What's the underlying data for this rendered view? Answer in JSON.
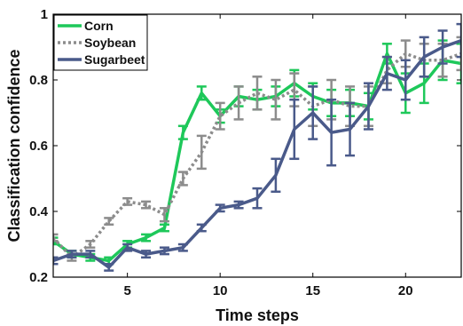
{
  "chart_data": {
    "type": "line",
    "xlabel": "Time steps",
    "ylabel": "Classification confidence",
    "xlim": [
      1,
      23
    ],
    "ylim": [
      0.2,
      1.0
    ],
    "x_ticks": [
      5,
      10,
      15,
      20
    ],
    "y_ticks": [
      0.2,
      0.4,
      0.6,
      0.8,
      1.0
    ],
    "y_tick_labels": [
      "0.2",
      "0.4",
      "0.6",
      "0.8",
      "1"
    ],
    "grid": false,
    "legend_position": "top-left",
    "x": [
      1,
      2,
      3,
      4,
      5,
      6,
      7,
      8,
      9,
      10,
      11,
      12,
      13,
      14,
      15,
      16,
      17,
      18,
      19,
      20,
      21,
      22,
      23
    ],
    "series": [
      {
        "name": "Corn",
        "color": "#1ec85a",
        "dash": "solid",
        "values": [
          0.31,
          0.27,
          0.26,
          0.25,
          0.3,
          0.32,
          0.35,
          0.64,
          0.76,
          0.69,
          0.75,
          0.74,
          0.75,
          0.79,
          0.75,
          0.73,
          0.73,
          0.72,
          0.88,
          0.76,
          0.79,
          0.86,
          0.85
        ],
        "err": [
          0.01,
          0.01,
          0.01,
          0.01,
          0.01,
          0.01,
          0.01,
          0.02,
          0.02,
          0.02,
          0.03,
          0.03,
          0.03,
          0.04,
          0.04,
          0.04,
          0.04,
          0.04,
          0.03,
          0.06,
          0.06,
          0.06,
          0.06
        ]
      },
      {
        "name": "Soybean",
        "color": "#8c8c8c",
        "dash": "dotted",
        "values": [
          0.32,
          0.26,
          0.3,
          0.37,
          0.43,
          0.42,
          0.39,
          0.5,
          0.58,
          0.69,
          0.73,
          0.76,
          0.74,
          0.77,
          0.72,
          0.74,
          0.72,
          0.72,
          0.83,
          0.88,
          0.86,
          0.86,
          0.88
        ],
        "err": [
          0.01,
          0.01,
          0.01,
          0.01,
          0.01,
          0.01,
          0.02,
          0.02,
          0.05,
          0.04,
          0.05,
          0.05,
          0.06,
          0.05,
          0.06,
          0.06,
          0.06,
          0.06,
          0.04,
          0.04,
          0.05,
          0.05,
          0.05
        ]
      },
      {
        "name": "Sugarbeet",
        "color": "#4a5a8a",
        "dash": "solid",
        "values": [
          0.25,
          0.27,
          0.27,
          0.23,
          0.29,
          0.27,
          0.28,
          0.29,
          0.35,
          0.41,
          0.42,
          0.44,
          0.51,
          0.65,
          0.7,
          0.64,
          0.65,
          0.72,
          0.82,
          0.8,
          0.87,
          0.9,
          0.92
        ],
        "err": [
          0.01,
          0.01,
          0.01,
          0.01,
          0.01,
          0.01,
          0.01,
          0.01,
          0.01,
          0.01,
          0.01,
          0.03,
          0.05,
          0.09,
          0.08,
          0.1,
          0.08,
          0.07,
          0.05,
          0.06,
          0.06,
          0.05,
          0.05
        ]
      }
    ]
  }
}
